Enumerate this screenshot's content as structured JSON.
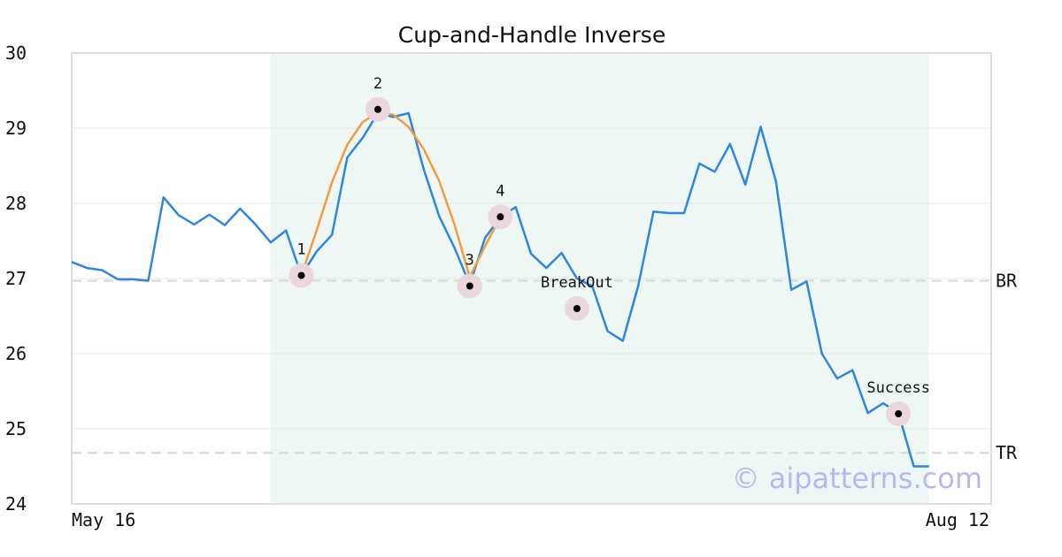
{
  "chart_data": {
    "type": "line",
    "title": "Cup-and-Handle Inverse",
    "xlabel": "",
    "ylabel": "",
    "ylim": [
      24,
      30
    ],
    "yticks": [
      24,
      25,
      26,
      27,
      28,
      29,
      30
    ],
    "x_range_labels": [
      "May 16",
      "Aug 12"
    ],
    "watermark": "© aipatterns.com",
    "grid": true,
    "colors": {
      "price": "#2e86de",
      "pattern": "#f39c3c",
      "highlight": "#eef7f3",
      "reference": "#dddddd",
      "marker_halo": "#ead7dc",
      "marker": "#000000"
    },
    "highlight_range": [
      13,
      56
    ],
    "series": [
      {
        "values": [
          27.22,
          27.14,
          27.11,
          26.99,
          26.99,
          26.97,
          28.08,
          27.84,
          27.72,
          27.85,
          27.71,
          27.93,
          27.72,
          27.48,
          27.64,
          27.04,
          27.36,
          27.58,
          28.61,
          28.87,
          29.2,
          29.15,
          29.2,
          28.45,
          27.83,
          27.41,
          26.92,
          27.54,
          27.82,
          27.95,
          27.33,
          27.14,
          27.34,
          27.0,
          26.9,
          26.3,
          26.17,
          26.9,
          27.89,
          27.87,
          27.87,
          28.53,
          28.42,
          28.79,
          28.25,
          29.02,
          28.29,
          26.85,
          26.96,
          26.0,
          25.67,
          25.78,
          25.21,
          25.34,
          25.21,
          24.5,
          24.5
        ]
      },
      {
        "values": [
          [
            15,
            27.04
          ],
          [
            16,
            27.64
          ],
          [
            17,
            28.28
          ],
          [
            18,
            28.78
          ],
          [
            19,
            29.08
          ],
          [
            20,
            29.21
          ],
          [
            21,
            29.18
          ],
          [
            22,
            29.02
          ],
          [
            23,
            28.72
          ],
          [
            24,
            28.3
          ],
          [
            25,
            27.72
          ],
          [
            26,
            27.02
          ],
          [
            27,
            27.43
          ],
          [
            28,
            27.82
          ]
        ]
      }
    ],
    "reference_lines": [
      {
        "label": "BR",
        "value": 26.97
      },
      {
        "label": "TR",
        "value": 24.68
      }
    ],
    "points": [
      {
        "label": "1",
        "x": 15,
        "y": 27.04
      },
      {
        "label": "2",
        "x": 20,
        "y": 29.25
      },
      {
        "label": "3",
        "x": 26,
        "y": 26.9
      },
      {
        "label": "4",
        "x": 28,
        "y": 27.82
      },
      {
        "label": "BreakOut",
        "x": 33,
        "y": 26.6
      },
      {
        "label": "Success",
        "x": 54,
        "y": 25.2
      }
    ]
  }
}
